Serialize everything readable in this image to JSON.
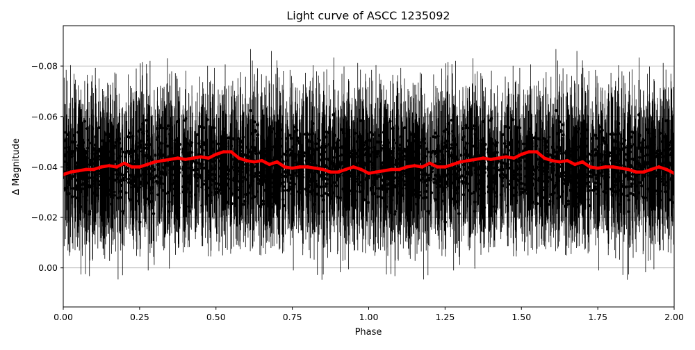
{
  "chart_data": {
    "type": "scatter",
    "title": "Light curve of ASCC 1235092",
    "xlabel": "Phase",
    "ylabel": "Δ Magnitude",
    "xlim": [
      0.0,
      2.0
    ],
    "ylim": [
      0.0155,
      -0.096
    ],
    "y_inverted": true,
    "grid": true,
    "x_ticks": [
      {
        "value": 0.0,
        "label": "0.00"
      },
      {
        "value": 0.25,
        "label": "0.25"
      },
      {
        "value": 0.5,
        "label": "0.50"
      },
      {
        "value": 0.75,
        "label": "0.75"
      },
      {
        "value": 1.0,
        "label": "1.00"
      },
      {
        "value": 1.25,
        "label": "1.25"
      },
      {
        "value": 1.5,
        "label": "1.50"
      },
      {
        "value": 1.75,
        "label": "1.75"
      },
      {
        "value": 2.0,
        "label": "2.00"
      }
    ],
    "y_ticks": [
      {
        "value": 0.0,
        "label": "0.00"
      },
      {
        "value": -0.02,
        "label": "−0.02"
      },
      {
        "value": -0.04,
        "label": "−0.04"
      },
      {
        "value": -0.06,
        "label": "−0.06"
      },
      {
        "value": -0.08,
        "label": "−0.08"
      }
    ],
    "series": [
      {
        "kind": "errorbar-points",
        "color": "#000000",
        "phase_period": 1.0,
        "mean": -0.04,
        "scatter_sigma": 0.018,
        "error_sigma": 0.022,
        "n_points": 1400
      },
      {
        "kind": "binned-line",
        "color": "#ff0000",
        "x": [
          0.0,
          0.025,
          0.05,
          0.075,
          0.1,
          0.125,
          0.15,
          0.175,
          0.2,
          0.225,
          0.25,
          0.275,
          0.3,
          0.325,
          0.35,
          0.375,
          0.4,
          0.425,
          0.45,
          0.475,
          0.5,
          0.525,
          0.55,
          0.575,
          0.6,
          0.625,
          0.65,
          0.675,
          0.7,
          0.725,
          0.75,
          0.775,
          0.8,
          0.825,
          0.85,
          0.875,
          0.9,
          0.925,
          0.95,
          0.975,
          1.0,
          1.025,
          1.05,
          1.075,
          1.1,
          1.125,
          1.15,
          1.175,
          1.2,
          1.225,
          1.25,
          1.275,
          1.3,
          1.325,
          1.35,
          1.375,
          1.4,
          1.425,
          1.45,
          1.475,
          1.5,
          1.525,
          1.55,
          1.575,
          1.6,
          1.625,
          1.65,
          1.675,
          1.7,
          1.725,
          1.75,
          1.775,
          1.8,
          1.825,
          1.85,
          1.875,
          1.9,
          1.925,
          1.95,
          1.975,
          2.0
        ],
        "y": [
          -0.037,
          -0.038,
          -0.0385,
          -0.039,
          -0.039,
          -0.04,
          -0.0405,
          -0.04,
          -0.0415,
          -0.04,
          -0.04,
          -0.041,
          -0.042,
          -0.0425,
          -0.043,
          -0.0435,
          -0.043,
          -0.0435,
          -0.044,
          -0.0435,
          -0.045,
          -0.046,
          -0.046,
          -0.0435,
          -0.0425,
          -0.042,
          -0.0425,
          -0.041,
          -0.042,
          -0.04,
          -0.0395,
          -0.04,
          -0.04,
          -0.0395,
          -0.039,
          -0.038,
          -0.038,
          -0.039,
          -0.04,
          -0.039,
          -0.0375,
          -0.038,
          -0.0385,
          -0.039,
          -0.039,
          -0.04,
          -0.0405,
          -0.04,
          -0.0415,
          -0.04,
          -0.04,
          -0.041,
          -0.042,
          -0.0425,
          -0.043,
          -0.0435,
          -0.043,
          -0.0435,
          -0.044,
          -0.0435,
          -0.045,
          -0.046,
          -0.046,
          -0.0435,
          -0.0425,
          -0.042,
          -0.0425,
          -0.041,
          -0.042,
          -0.04,
          -0.0395,
          -0.04,
          -0.04,
          -0.0395,
          -0.039,
          -0.038,
          -0.038,
          -0.039,
          -0.04,
          -0.039,
          -0.0375
        ]
      }
    ]
  }
}
